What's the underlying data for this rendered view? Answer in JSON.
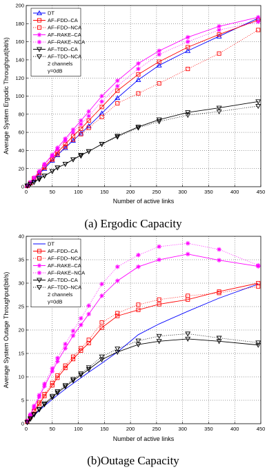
{
  "chart_data": [
    {
      "type": "line",
      "caption": "(a) Ergodic Capacity",
      "xlabel": "Number of active links",
      "ylabel": "Average System Ergodic Throughput(bit/s)",
      "xlim": [
        0,
        450
      ],
      "ylim": [
        0,
        200
      ],
      "xticks": [
        0,
        50,
        100,
        150,
        200,
        250,
        300,
        350,
        400,
        450
      ],
      "yticks": [
        0,
        20,
        40,
        60,
        80,
        100,
        120,
        140,
        160,
        180,
        200
      ],
      "grid": true,
      "legend_position": "top-left",
      "legend_notes": [
        "2 channels",
        "γ=0dB"
      ],
      "series": [
        {
          "name": "DT",
          "color": "#0000ff",
          "line": "solid",
          "marker": "triangle-up",
          "x": [
            2,
            8,
            15,
            25,
            35,
            50,
            60,
            75,
            90,
            105,
            120,
            145,
            175,
            215,
            255,
            310,
            370,
            445
          ],
          "y": [
            1,
            4,
            8,
            14,
            20,
            29,
            35,
            43,
            51,
            59,
            67,
            81,
            98,
            118,
            134,
            150,
            166,
            186
          ]
        },
        {
          "name": "AF–FDD–CA",
          "color": "#ff0000",
          "line": "solid",
          "marker": "square",
          "x": [
            2,
            8,
            15,
            25,
            35,
            50,
            60,
            75,
            90,
            105,
            120,
            145,
            175,
            215,
            255,
            310,
            370,
            445
          ],
          "y": [
            1,
            4,
            9,
            15,
            22,
            31,
            38,
            47,
            56,
            64,
            73,
            88,
            106,
            124,
            138,
            154,
            168,
            184
          ]
        },
        {
          "name": "AF–FDD–NCA",
          "color": "#ff0000",
          "line": "dotted",
          "marker": "square-open",
          "x": [
            2,
            8,
            15,
            25,
            35,
            50,
            60,
            75,
            90,
            105,
            120,
            145,
            175,
            215,
            255,
            310,
            370,
            445
          ],
          "y": [
            1,
            4,
            9,
            15,
            21,
            30,
            36,
            44,
            52,
            58,
            65,
            77,
            92,
            103,
            114,
            130,
            147,
            173
          ]
        },
        {
          "name": "AF–RAKE–CA",
          "color": "#ff00ff",
          "line": "solid",
          "marker": "star",
          "x": [
            2,
            8,
            15,
            25,
            35,
            50,
            60,
            75,
            90,
            105,
            120,
            145,
            175,
            215,
            255,
            310,
            370,
            445
          ],
          "y": [
            1,
            5,
            10,
            17,
            25,
            35,
            43,
            53,
            63,
            73,
            83,
            100,
            117,
            136,
            150,
            165,
            177,
            187
          ]
        },
        {
          "name": "AF–RAKE–NCA",
          "color": "#ff00ff",
          "line": "dotted",
          "marker": "star",
          "x": [
            2,
            8,
            15,
            25,
            35,
            50,
            60,
            75,
            90,
            105,
            120,
            145,
            175,
            215,
            255,
            310,
            370,
            445
          ],
          "y": [
            1,
            5,
            10,
            17,
            24,
            34,
            41,
            51,
            60,
            69,
            78,
            94,
            111,
            130,
            146,
            160,
            173,
            182
          ]
        },
        {
          "name": "AF–TDD–CA",
          "color": "#000000",
          "line": "solid",
          "marker": "triangle-down",
          "x": [
            2,
            8,
            15,
            25,
            35,
            50,
            60,
            75,
            90,
            105,
            120,
            145,
            175,
            215,
            255,
            310,
            370,
            445
          ],
          "y": [
            1,
            3,
            5,
            9,
            12,
            17,
            21,
            25,
            30,
            35,
            39,
            47,
            56,
            66,
            74,
            82,
            87,
            94
          ]
        },
        {
          "name": "AF–TDD–NCA",
          "color": "#000000",
          "line": "dotted",
          "marker": "triangle-down",
          "x": [
            2,
            8,
            15,
            25,
            35,
            50,
            60,
            75,
            90,
            105,
            120,
            145,
            175,
            215,
            255,
            310,
            370,
            445
          ],
          "y": [
            1,
            3,
            5,
            8,
            12,
            17,
            21,
            25,
            30,
            34,
            39,
            47,
            55,
            65,
            72,
            79,
            83,
            89
          ]
        }
      ]
    },
    {
      "type": "line",
      "caption": "(b)Outage Capacity",
      "xlabel": "Number of active links",
      "ylabel": "Average System Outage Throughput(bit/s)",
      "xlim": [
        0,
        450
      ],
      "ylim": [
        0,
        40
      ],
      "xticks": [
        0,
        50,
        100,
        150,
        200,
        250,
        300,
        350,
        400,
        450
      ],
      "yticks": [
        0,
        5,
        10,
        15,
        20,
        25,
        30,
        35,
        40
      ],
      "grid": true,
      "legend_position": "top-left",
      "legend_notes": [
        "2 channels",
        "γ=0dB"
      ],
      "series": [
        {
          "name": "DT",
          "color": "#0000ff",
          "line": "solid",
          "marker": "none",
          "x": [
            2,
            8,
            15,
            25,
            35,
            50,
            60,
            75,
            90,
            105,
            120,
            145,
            175,
            215,
            255,
            310,
            370,
            445
          ],
          "y": [
            0.3,
            1,
            1.8,
            2.8,
            3.8,
            5.2,
            6.1,
            7.4,
            8.6,
            9.8,
            11,
            12.9,
            15.3,
            19,
            21.3,
            24,
            26.8,
            29.8
          ]
        },
        {
          "name": "AF–FDD–CA",
          "color": "#ff0000",
          "line": "solid",
          "marker": "square",
          "x": [
            2,
            8,
            15,
            25,
            35,
            50,
            60,
            75,
            90,
            105,
            120,
            145,
            175,
            215,
            255,
            310,
            370,
            445
          ],
          "y": [
            0.4,
            1.4,
            2.6,
            4.2,
            5.9,
            8.2,
            9.8,
            11.9,
            13.8,
            15.6,
            17.2,
            20.5,
            23,
            24.3,
            25.5,
            26.5,
            28.2,
            30
          ]
        },
        {
          "name": "AF–FDD–NCA",
          "color": "#ff0000",
          "line": "dotted",
          "marker": "square-open",
          "x": [
            2,
            8,
            15,
            25,
            35,
            50,
            60,
            75,
            90,
            105,
            120,
            145,
            175,
            215,
            255,
            310,
            370,
            445
          ],
          "y": [
            0.5,
            1.5,
            2.8,
            4.5,
            6.3,
            8.7,
            10.3,
            12.4,
            14.3,
            16.1,
            17.9,
            21.6,
            23.6,
            25.4,
            26.5,
            27.3,
            27.9,
            29.3
          ]
        },
        {
          "name": "AF–RAKE–CA",
          "color": "#ff00ff",
          "line": "solid",
          "marker": "star",
          "x": [
            2,
            8,
            15,
            25,
            35,
            50,
            60,
            75,
            90,
            105,
            120,
            145,
            175,
            215,
            255,
            310,
            370,
            445
          ],
          "y": [
            0.5,
            1.8,
            3.5,
            5.7,
            8,
            11.2,
            13.3,
            16.1,
            18.8,
            21.1,
            23.4,
            27.3,
            30.5,
            33.5,
            35,
            36.2,
            34.9,
            33.6
          ]
        },
        {
          "name": "AF–RAKE–NCA",
          "color": "#ff00ff",
          "line": "dotted",
          "marker": "star",
          "x": [
            2,
            8,
            15,
            25,
            35,
            50,
            60,
            75,
            90,
            105,
            120,
            145,
            175,
            215,
            255,
            310,
            370,
            445
          ],
          "y": [
            0.6,
            2,
            3.8,
            6.1,
            8.5,
            11.8,
            14,
            17,
            19.8,
            22.5,
            25.2,
            29.8,
            33.5,
            36,
            37.8,
            38.5,
            37.2,
            33.8
          ]
        },
        {
          "name": "AF–TDD–CA",
          "color": "#000000",
          "line": "solid",
          "marker": "triangle-down",
          "x": [
            2,
            8,
            15,
            25,
            35,
            50,
            60,
            75,
            90,
            105,
            120,
            145,
            175,
            215,
            255,
            310,
            370,
            445
          ],
          "y": [
            0.3,
            1,
            1.9,
            3,
            4.1,
            5.6,
            6.6,
            7.9,
            9.2,
            10.4,
            11.6,
            13.7,
            15.3,
            16.9,
            17.6,
            18.1,
            17.6,
            16.8
          ]
        },
        {
          "name": "AF–TDD–NCA",
          "color": "#000000",
          "line": "dotted",
          "marker": "triangle-down",
          "x": [
            2,
            8,
            15,
            25,
            35,
            50,
            60,
            75,
            90,
            105,
            120,
            145,
            175,
            215,
            255,
            310,
            370,
            445
          ],
          "y": [
            0.3,
            1.1,
            2,
            3.1,
            4.3,
            5.9,
            6.9,
            8.2,
            9.5,
            10.7,
            12,
            14.3,
            16,
            17.7,
            18.7,
            19.2,
            18.3,
            17.3
          ]
        }
      ]
    }
  ]
}
